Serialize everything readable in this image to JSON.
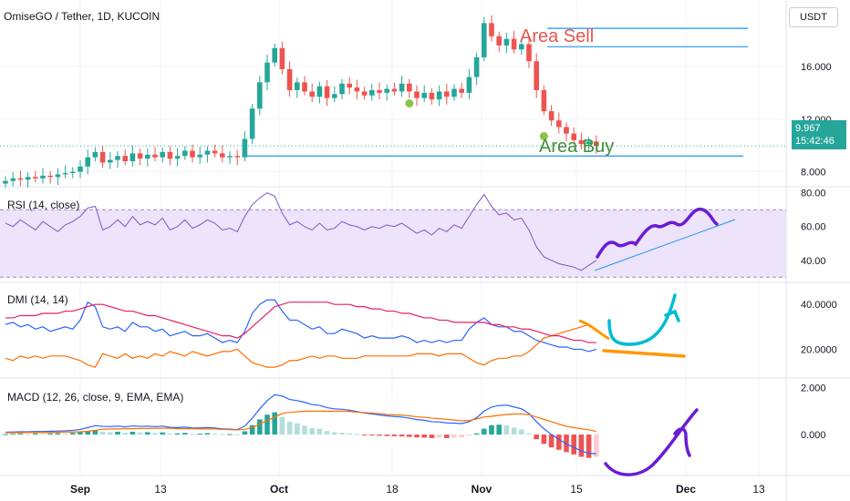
{
  "header": {
    "symbol_title": "OmiseGO / Tether, 1D, KUCOIN",
    "quote_currency": "USDT",
    "last_price": "9.967",
    "countdown": "15:42:46"
  },
  "annotations": {
    "sell_zone": "Area Sell",
    "buy_zone": "Area Buy"
  },
  "colors": {
    "up": "#26a69a",
    "down": "#ef5350",
    "rsi_line": "#7e57c2",
    "rsi_band": "#ede3fb",
    "dmi_plus": "#2962ff",
    "dmi_minus": "#ff6d00",
    "adx": "#e91e63",
    "macd": "#2962ff",
    "signal": "#ff6d00",
    "level_line": "#2196f3",
    "marker": "#8bc34a"
  },
  "chart_data": [
    {
      "type": "candlestick",
      "title": "OmiseGO / Tether, 1D, KUCOIN",
      "y_ticks": [
        "16.000",
        "12.000",
        "8.000"
      ],
      "ylim": [
        7,
        20.5
      ],
      "x_ticks": [
        "Sep",
        "13",
        "Oct",
        "18",
        "Nov",
        "15",
        "Dec",
        "13"
      ],
      "close": [
        7.3,
        7.5,
        7.4,
        7.6,
        7.5,
        7.7,
        7.6,
        7.8,
        7.9,
        8.0,
        8.4,
        9.1,
        9.5,
        8.7,
        8.9,
        9.2,
        8.8,
        9.4,
        9.0,
        9.3,
        9.1,
        9.5,
        9.0,
        9.2,
        9.6,
        9.1,
        9.3,
        9.6,
        9.4,
        9.1,
        9.2,
        9.1,
        10.5,
        12.8,
        14.8,
        16.3,
        17.4,
        15.8,
        14.2,
        14.8,
        14.1,
        13.7,
        14.5,
        13.6,
        13.9,
        14.7,
        14.4,
        14.1,
        13.8,
        14.2,
        14.0,
        14.3,
        14.1,
        14.7,
        14.1,
        13.6,
        14.0,
        13.5,
        14.1,
        13.7,
        14.3,
        14.0,
        15.2,
        16.7,
        19.3,
        18.3,
        17.6,
        18.1,
        17.3,
        17.7,
        16.4,
        14.2,
        12.6,
        11.9,
        11.4,
        10.9,
        10.4,
        10.1,
        10.3,
        9.97
      ],
      "open": [
        7.1,
        7.3,
        7.5,
        7.4,
        7.6,
        7.5,
        7.7,
        7.6,
        7.8,
        7.9,
        8.0,
        8.4,
        9.1,
        9.5,
        8.7,
        8.9,
        9.2,
        8.8,
        9.4,
        9.0,
        9.3,
        9.1,
        9.5,
        9.0,
        9.2,
        9.6,
        9.1,
        9.3,
        9.6,
        9.4,
        9.1,
        9.2,
        9.1,
        10.5,
        12.8,
        14.8,
        16.3,
        17.4,
        15.8,
        14.2,
        14.8,
        14.1,
        13.7,
        14.5,
        13.6,
        13.9,
        14.7,
        14.4,
        14.1,
        13.8,
        14.2,
        14.0,
        14.3,
        14.1,
        14.7,
        14.1,
        13.6,
        14.0,
        13.5,
        14.1,
        13.7,
        14.3,
        14.0,
        15.2,
        16.7,
        19.3,
        18.3,
        17.6,
        18.1,
        17.3,
        17.7,
        16.4,
        14.2,
        12.6,
        11.9,
        11.4,
        10.9,
        10.4,
        10.1,
        10.3
      ],
      "levels": [
        {
          "name": "sell_upper",
          "value": 18.9
        },
        {
          "name": "sell_lower",
          "value": 17.5
        },
        {
          "name": "buy",
          "value": 9.2
        }
      ],
      "markers": [
        {
          "index": 54,
          "value": 13.2
        },
        {
          "index": 72,
          "value": 10.7
        }
      ],
      "current_price": 9.967
    },
    {
      "type": "line",
      "title": "RSI (14, close)",
      "y_ticks": [
        "80.00",
        "60.00",
        "40.00"
      ],
      "ylim": [
        28,
        82
      ],
      "band": [
        30,
        70
      ],
      "series": [
        {
          "values": [
            62,
            60,
            64,
            61,
            58,
            63,
            60,
            57,
            61,
            63,
            66,
            71,
            72,
            58,
            60,
            64,
            60,
            66,
            61,
            63,
            61,
            65,
            58,
            60,
            64,
            59,
            61,
            64,
            62,
            58,
            59,
            57,
            66,
            73,
            77,
            80,
            78,
            68,
            61,
            63,
            60,
            58,
            62,
            58,
            59,
            63,
            61,
            60,
            58,
            60,
            59,
            61,
            60,
            62,
            59,
            56,
            58,
            55,
            59,
            57,
            61,
            59,
            66,
            73,
            79,
            72,
            67,
            68,
            64,
            65,
            58,
            48,
            42,
            40,
            38,
            37,
            36,
            34,
            37,
            40
          ]
        }
      ]
    },
    {
      "type": "line",
      "title": "DMI (14, 14)",
      "y_ticks": [
        "40.0000",
        "20.0000"
      ],
      "ylim": [
        8,
        49
      ],
      "series": [
        {
          "values": [
            31,
            32,
            30,
            31,
            29,
            30,
            28,
            29,
            30,
            29,
            33,
            41,
            39,
            30,
            29,
            30,
            28,
            32,
            30,
            30,
            28,
            29,
            26,
            27,
            28,
            26,
            26,
            27,
            25,
            23,
            24,
            23,
            28,
            36,
            40,
            42,
            42,
            37,
            33,
            33,
            31,
            29,
            30,
            27,
            27,
            29,
            28,
            27,
            25,
            26,
            25,
            25,
            25,
            26,
            25,
            23,
            24,
            23,
            24,
            23,
            24,
            24,
            29,
            32,
            34,
            31,
            30,
            30,
            28,
            28,
            26,
            24,
            23,
            22,
            21,
            21,
            20,
            20,
            19,
            20
          ]
        },
        {
          "values": [
            16,
            15,
            17,
            16,
            17,
            16,
            17,
            17,
            17,
            16,
            15,
            13,
            12,
            18,
            17,
            16,
            18,
            16,
            17,
            16,
            18,
            17,
            19,
            18,
            17,
            19,
            18,
            17,
            18,
            19,
            19,
            20,
            17,
            14,
            13,
            12,
            12,
            13,
            15,
            15,
            16,
            17,
            16,
            17,
            17,
            16,
            16,
            16,
            17,
            17,
            17,
            17,
            17,
            17,
            17,
            18,
            18,
            18,
            17,
            18,
            18,
            18,
            16,
            14,
            13,
            15,
            16,
            16,
            17,
            17,
            19,
            22,
            25,
            26,
            27,
            28,
            29,
            30,
            31,
            29
          ]
        },
        {
          "values": [
            34,
            34,
            35,
            35,
            35,
            36,
            36,
            36,
            37,
            37,
            38,
            39,
            40,
            40,
            39,
            38,
            37,
            37,
            36,
            35,
            35,
            34,
            33,
            32,
            31,
            30,
            29,
            28,
            27,
            26,
            26,
            25,
            27,
            30,
            33,
            36,
            39,
            40,
            41,
            41,
            41,
            41,
            41,
            41,
            40,
            40,
            40,
            39,
            39,
            38,
            38,
            37,
            37,
            36,
            36,
            35,
            34,
            34,
            33,
            33,
            32,
            32,
            32,
            32,
            32,
            31,
            31,
            30,
            30,
            29,
            29,
            28,
            27,
            26,
            26,
            25,
            24,
            24,
            23,
            23
          ]
        }
      ]
    },
    {
      "type": "bar+line",
      "title": "MACD (12, 26, close, 9, EMA, EMA)",
      "y_ticks": [
        "2.000",
        "0.000"
      ],
      "ylim": [
        -1.75,
        2.3
      ],
      "histogram": [
        0.02,
        0.03,
        0.04,
        0.03,
        0.05,
        0.04,
        0.05,
        0.06,
        0.05,
        0.07,
        0.1,
        0.16,
        0.2,
        0.12,
        0.1,
        0.12,
        0.08,
        0.12,
        0.09,
        0.1,
        0.07,
        0.09,
        0.04,
        0.05,
        0.07,
        0.03,
        0.04,
        0.06,
        0.04,
        0.02,
        0.02,
        0.01,
        0.14,
        0.4,
        0.65,
        0.85,
        0.95,
        0.75,
        0.55,
        0.48,
        0.38,
        0.28,
        0.25,
        0.15,
        0.1,
        0.08,
        0.05,
        0.02,
        -0.02,
        -0.04,
        -0.05,
        -0.06,
        -0.07,
        -0.08,
        -0.1,
        -0.12,
        -0.13,
        -0.15,
        -0.14,
        -0.15,
        -0.13,
        -0.12,
        -0.05,
        0.05,
        0.25,
        0.4,
        0.42,
        0.4,
        0.3,
        0.22,
        0.05,
        -0.2,
        -0.4,
        -0.55,
        -0.65,
        -0.75,
        -0.85,
        -0.95,
        -1.0,
        -0.95
      ],
      "macd": [
        0.1,
        0.11,
        0.12,
        0.12,
        0.13,
        0.13,
        0.14,
        0.15,
        0.16,
        0.18,
        0.22,
        0.3,
        0.38,
        0.35,
        0.34,
        0.36,
        0.33,
        0.37,
        0.35,
        0.36,
        0.34,
        0.36,
        0.31,
        0.3,
        0.32,
        0.28,
        0.28,
        0.3,
        0.28,
        0.24,
        0.23,
        0.21,
        0.36,
        0.7,
        1.1,
        1.45,
        1.7,
        1.65,
        1.5,
        1.45,
        1.38,
        1.28,
        1.25,
        1.15,
        1.1,
        1.08,
        1.04,
        0.98,
        0.92,
        0.88,
        0.84,
        0.8,
        0.77,
        0.75,
        0.7,
        0.64,
        0.61,
        0.55,
        0.54,
        0.5,
        0.49,
        0.47,
        0.55,
        0.72,
        1.0,
        1.18,
        1.24,
        1.26,
        1.18,
        1.1,
        0.9,
        0.55,
        0.25,
        0.0,
        -0.2,
        -0.4,
        -0.55,
        -0.7,
        -0.8,
        -0.82
      ],
      "signal": [
        0.08,
        0.08,
        0.08,
        0.09,
        0.09,
        0.09,
        0.09,
        0.1,
        0.11,
        0.11,
        0.12,
        0.14,
        0.18,
        0.23,
        0.24,
        0.24,
        0.25,
        0.25,
        0.26,
        0.26,
        0.27,
        0.27,
        0.27,
        0.25,
        0.25,
        0.25,
        0.24,
        0.24,
        0.24,
        0.22,
        0.21,
        0.2,
        0.22,
        0.3,
        0.45,
        0.6,
        0.75,
        0.9,
        0.95,
        0.97,
        1.0,
        1.0,
        1.0,
        1.0,
        1.0,
        1.0,
        0.99,
        0.96,
        0.94,
        0.92,
        0.89,
        0.86,
        0.84,
        0.83,
        0.8,
        0.76,
        0.74,
        0.7,
        0.68,
        0.65,
        0.62,
        0.59,
        0.6,
        0.67,
        0.75,
        0.78,
        0.82,
        0.86,
        0.88,
        0.88,
        0.85,
        0.75,
        0.65,
        0.55,
        0.45,
        0.35,
        0.3,
        0.25,
        0.2,
        0.13
      ]
    }
  ]
}
